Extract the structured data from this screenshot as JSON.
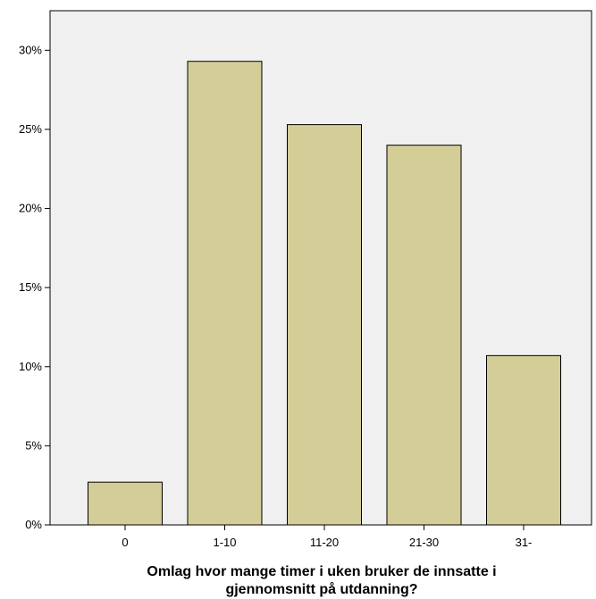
{
  "chart_data": {
    "type": "bar",
    "categories": [
      "0",
      "1-10",
      "11-20",
      "21-30",
      "31-"
    ],
    "values": [
      2.7,
      29.3,
      25.3,
      24.0,
      10.7
    ],
    "title": "",
    "xlabel_lines": [
      "Omlag hvor mange timer i uken bruker de innsatte i",
      "gjennomsnitt på utdanning?"
    ],
    "ylabel": "",
    "ylim": [
      0,
      32.5
    ],
    "yticks": [
      0,
      5,
      10,
      15,
      20,
      25,
      30
    ],
    "ytick_labels": [
      "0%",
      "5%",
      "10%",
      "15%",
      "20%",
      "25%",
      "30%"
    ],
    "grid": false,
    "colors": {
      "plot_background": "#f0f0f0",
      "bar_fill": "#d3ce97",
      "bar_stroke": "#000000"
    }
  }
}
